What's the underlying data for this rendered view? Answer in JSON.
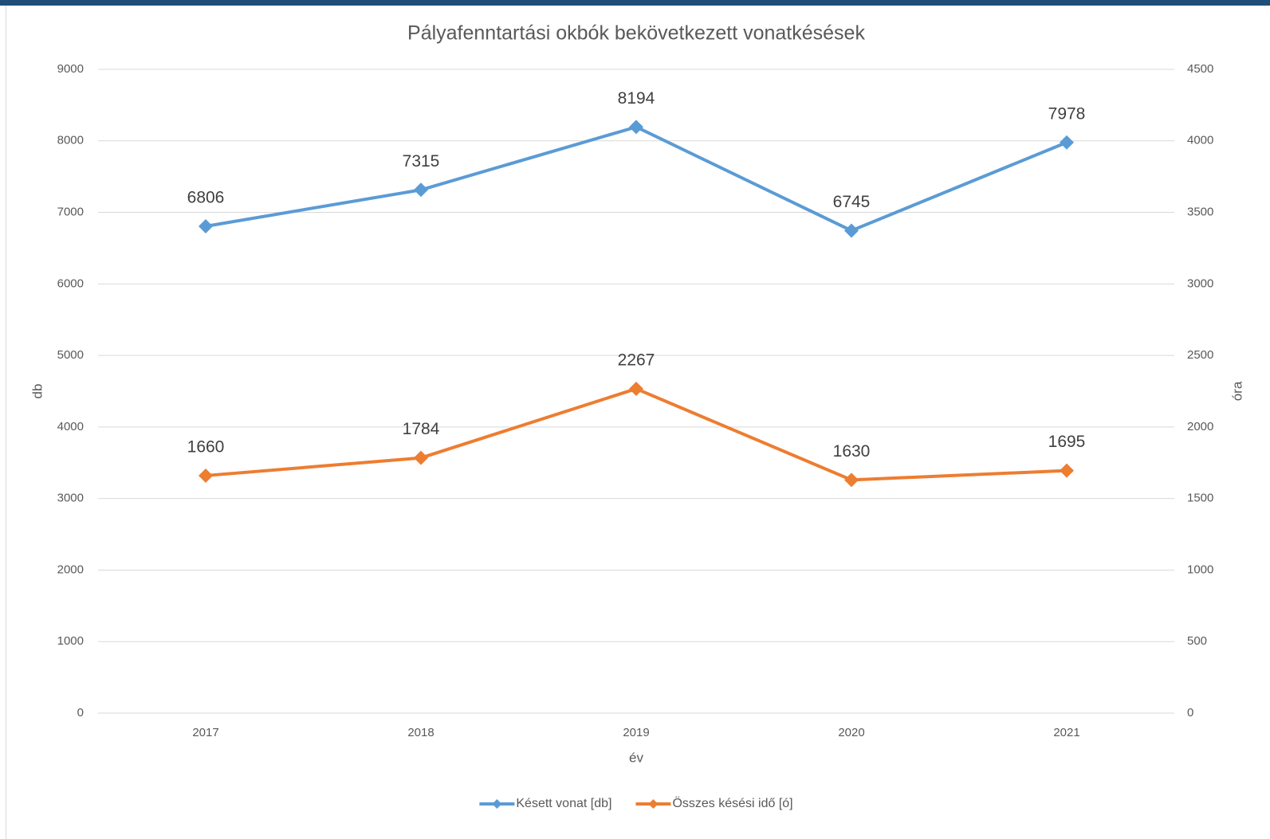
{
  "chart_data": {
    "type": "line",
    "title": "Pályafenntartási okbók bekövetkezett vonatkésések",
    "xlabel": "év",
    "ylabel": "db",
    "y2label": "óra",
    "categories": [
      "2017",
      "2018",
      "2019",
      "2020",
      "2021"
    ],
    "series": [
      {
        "name": "Késett vonat [db]",
        "color": "#5b9bd5",
        "values": [
          6806,
          7315,
          8194,
          6745,
          7978
        ]
      },
      {
        "name": "Összes késési idő [ó]",
        "color": "#ed7d31",
        "axis": "y2",
        "values": [
          1660,
          1784,
          2267,
          1630,
          1695
        ]
      }
    ],
    "ylim": [
      0,
      9000
    ],
    "yticks": [
      0,
      1000,
      2000,
      3000,
      4000,
      5000,
      6000,
      7000,
      8000,
      9000
    ],
    "y2lim": [
      0,
      4500
    ],
    "y2ticks": [
      0,
      500,
      1000,
      1500,
      2000,
      2500,
      3000,
      3500,
      4000,
      4500
    ],
    "grid": true,
    "legend": "bottom"
  }
}
